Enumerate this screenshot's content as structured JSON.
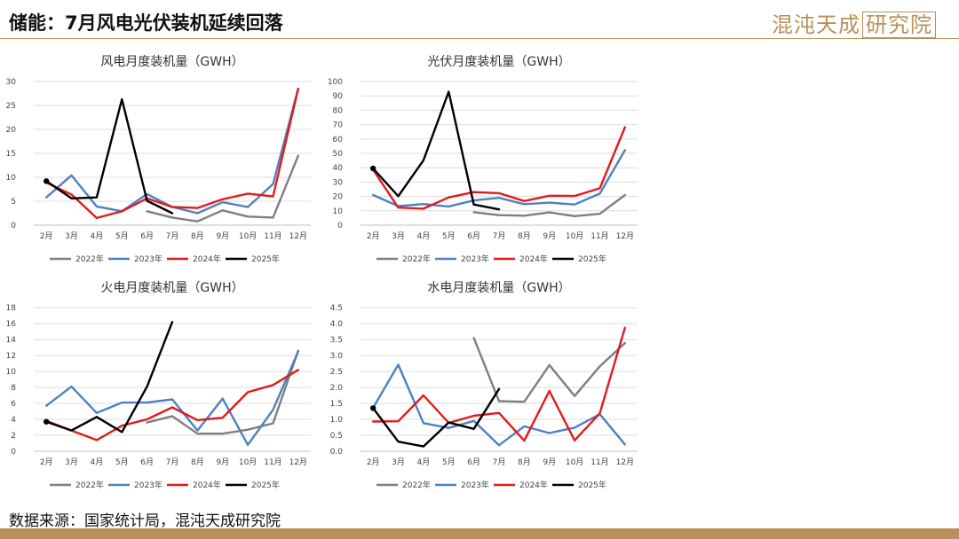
{
  "header": {
    "title": "储能：7月风电光伏装机延续回落",
    "brand_main": "混沌天成",
    "brand_box": "研究院"
  },
  "footer": {
    "source": "数据来源：国家统计局，混沌天成研究院"
  },
  "colors": {
    "2022年": "#7f7f7f",
    "2023年": "#4f81bd",
    "2024年": "#e01b1b",
    "2025年": "#000000",
    "brand": "#b9915a"
  },
  "chart_data": [
    {
      "type": "line",
      "title": "风电月度装机量（GWH）",
      "categories": [
        "2月",
        "3月",
        "4月",
        "5月",
        "6月",
        "7月",
        "8月",
        "9月",
        "10月",
        "11月",
        "12月"
      ],
      "ylim": [
        0,
        30
      ],
      "yticks": [
        "0",
        "5",
        "10",
        "15",
        "20",
        "25",
        "30"
      ],
      "grid": true,
      "legend": "bottom",
      "series": [
        {
          "name": "2022年",
          "values": [
            null,
            null,
            null,
            null,
            2.9,
            1.6,
            0.8,
            3.1,
            1.8,
            1.6,
            14.5
          ]
        },
        {
          "name": "2023年",
          "values": [
            5.8,
            10.4,
            3.9,
            2.9,
            6.5,
            3.8,
            2.5,
            4.8,
            3.8,
            8.6,
            28.5
          ]
        },
        {
          "name": "2024年",
          "values": [
            8.9,
            6.4,
            1.5,
            2.9,
            5.6,
            3.8,
            3.6,
            5.4,
            6.6,
            6.0,
            28.5
          ]
        },
        {
          "name": "2025年",
          "values": [
            9.2,
            5.6,
            5.8,
            26.3,
            5.1,
            2.5,
            null,
            null,
            null,
            null,
            null
          ]
        }
      ]
    },
    {
      "type": "line",
      "title": "光伏月度装机量（GWH）",
      "categories": [
        "2月",
        "3月",
        "4月",
        "5月",
        "6月",
        "7月",
        "8月",
        "9月",
        "10月",
        "11月",
        "12月"
      ],
      "ylim": [
        0,
        100
      ],
      "yticks": [
        "0",
        "10",
        "20",
        "30",
        "40",
        "50",
        "60",
        "70",
        "80",
        "90",
        "100"
      ],
      "grid": true,
      "legend": "bottom",
      "series": [
        {
          "name": "2022年",
          "values": [
            null,
            null,
            null,
            null,
            9.0,
            7.0,
            6.6,
            8.9,
            6.3,
            7.9,
            21.0
          ]
        },
        {
          "name": "2023年",
          "values": [
            21.0,
            13.3,
            14.7,
            13.0,
            17.2,
            19.0,
            14.6,
            15.7,
            14.4,
            22.0,
            52.2
          ]
        },
        {
          "name": "2024年",
          "values": [
            38.6,
            12.2,
            11.5,
            19.3,
            23.0,
            22.3,
            16.8,
            20.5,
            20.3,
            25.7,
            68.2
          ]
        },
        {
          "name": "2025年",
          "values": [
            39.5,
            20.2,
            45.2,
            92.9,
            14.4,
            11.0,
            null,
            null,
            null,
            null,
            null
          ]
        }
      ]
    },
    {
      "type": "line",
      "title": "火电月度装机量（GWH）",
      "categories": [
        "2月",
        "3月",
        "4月",
        "5月",
        "6月",
        "7月",
        "8月",
        "9月",
        "10月",
        "11月",
        "12月"
      ],
      "ylim": [
        0,
        18
      ],
      "yticks": [
        "0",
        "2",
        "4",
        "6",
        "8",
        "10",
        "12",
        "14",
        "16",
        "18"
      ],
      "grid": true,
      "legend": "bottom",
      "series": [
        {
          "name": "2022年",
          "values": [
            null,
            null,
            null,
            null,
            3.6,
            4.4,
            2.2,
            2.2,
            2.7,
            3.5,
            12.6
          ]
        },
        {
          "name": "2023年",
          "values": [
            5.7,
            8.1,
            4.8,
            6.1,
            6.1,
            6.5,
            2.6,
            6.6,
            0.8,
            5.2,
            12.5
          ]
        },
        {
          "name": "2024年",
          "values": [
            3.8,
            2.6,
            1.4,
            3.2,
            4.0,
            5.5,
            3.9,
            4.2,
            7.4,
            8.3,
            10.2
          ]
        },
        {
          "name": "2025年",
          "values": [
            3.7,
            2.6,
            4.3,
            2.4,
            8.1,
            16.2,
            null,
            null,
            null,
            null,
            null
          ]
        }
      ]
    },
    {
      "type": "line",
      "title": "水电月度装机量（GWH）",
      "categories": [
        "2月",
        "3月",
        "4月",
        "5月",
        "6月",
        "7月",
        "8月",
        "9月",
        "10月",
        "11月",
        "12月"
      ],
      "ylim": [
        0,
        4.5
      ],
      "yticks": [
        "0.0",
        "0.5",
        "1.0",
        "1.5",
        "2.0",
        "2.5",
        "3.0",
        "3.5",
        "4.0",
        "4.5"
      ],
      "grid": true,
      "legend": "bottom",
      "series": [
        {
          "name": "2022年",
          "values": [
            null,
            null,
            null,
            null,
            3.55,
            1.57,
            1.55,
            2.7,
            1.73,
            2.66,
            3.39
          ]
        },
        {
          "name": "2023年",
          "values": [
            1.36,
            2.71,
            0.88,
            0.73,
            0.95,
            0.19,
            0.78,
            0.57,
            0.74,
            1.16,
            0.21
          ]
        },
        {
          "name": "2024年",
          "values": [
            0.93,
            0.94,
            1.75,
            0.89,
            1.11,
            1.2,
            0.33,
            1.89,
            0.34,
            1.19,
            3.87
          ]
        },
        {
          "name": "2025年",
          "values": [
            1.35,
            0.3,
            0.15,
            0.9,
            0.7,
            1.95,
            null,
            null,
            null,
            null,
            null
          ]
        }
      ]
    }
  ]
}
